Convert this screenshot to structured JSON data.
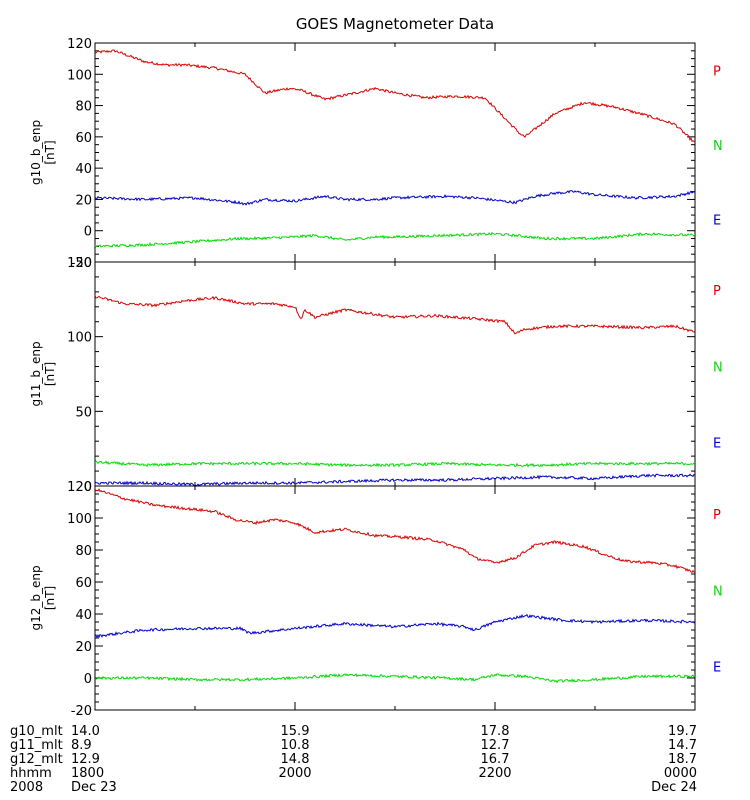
{
  "title": "GOES Magnetometer Data",
  "colors": {
    "P": "#dd0000",
    "N": "#00dd00",
    "E": "#0000cc"
  },
  "legend_labels": [
    "P",
    "N",
    "E"
  ],
  "chart_data": [
    {
      "type": "line",
      "ylabel": "g10_b_enp",
      "yunit": "[nT]",
      "ylim": [
        -20,
        120
      ],
      "yticks": [
        -20,
        0,
        20,
        40,
        60,
        80,
        100,
        120
      ],
      "xlim": [
        0,
        6
      ],
      "x_hours_note": "hours from 1800 UT Dec 23",
      "series": [
        {
          "name": "P",
          "color": "P",
          "x": [
            0,
            0.2,
            0.5,
            0.7,
            0.9,
            1.2,
            1.5,
            1.7,
            1.85,
            1.95,
            2.05,
            2.3,
            2.6,
            2.8,
            3.0,
            3.3,
            3.6,
            3.9,
            4.05,
            4.25,
            4.3,
            4.6,
            4.9,
            5.2,
            5.5,
            5.8,
            6.0
          ],
          "y": [
            114,
            115,
            108,
            106,
            106,
            104,
            100,
            88,
            90,
            91,
            90,
            84,
            88,
            91,
            88,
            85,
            86,
            85,
            75,
            62,
            60,
            75,
            82,
            79,
            74,
            68,
            56
          ]
        },
        {
          "name": "E",
          "color": "E",
          "x": [
            0,
            0.5,
            1.0,
            1.45,
            1.5,
            1.7,
            2.0,
            2.3,
            2.5,
            2.8,
            3.0,
            3.5,
            3.8,
            4.2,
            4.4,
            4.6,
            4.8,
            5.0,
            5.4,
            5.8,
            6.0
          ],
          "y": [
            21,
            20,
            21,
            18,
            17,
            20,
            19,
            22,
            20,
            20,
            21,
            22,
            21,
            18,
            22,
            24,
            25,
            23,
            21,
            22,
            25
          ]
        },
        {
          "name": "N",
          "color": "N",
          "x": [
            0,
            0.5,
            1.0,
            1.45,
            1.6,
            2.0,
            2.2,
            2.5,
            2.8,
            3.0,
            3.5,
            4.0,
            4.2,
            4.5,
            5.0,
            5.5,
            6.0
          ],
          "y": [
            -10,
            -9,
            -7,
            -5,
            -5,
            -4,
            -3,
            -6,
            -4,
            -4,
            -3,
            -2,
            -3,
            -5,
            -5,
            -2,
            -3
          ]
        }
      ]
    },
    {
      "type": "line",
      "ylabel": "g11_b_enp",
      "yunit": "[nT]",
      "ylim": [
        0,
        150
      ],
      "yticks": [
        0,
        50,
        100,
        150
      ],
      "xlim": [
        0,
        6
      ],
      "series": [
        {
          "name": "P",
          "color": "P",
          "x": [
            0,
            0.3,
            0.6,
            0.9,
            1.2,
            1.5,
            1.8,
            2.0,
            2.06,
            2.1,
            2.2,
            2.5,
            2.8,
            3.0,
            3.4,
            3.8,
            4.1,
            4.2,
            4.3,
            4.6,
            5.0,
            5.5,
            5.8,
            6.0
          ],
          "y": [
            127,
            122,
            121,
            124,
            126,
            122,
            122,
            120,
            112,
            118,
            113,
            118,
            115,
            113,
            114,
            112,
            110,
            102,
            105,
            107,
            107,
            106,
            107,
            103
          ]
        },
        {
          "name": "N",
          "color": "N",
          "x": [
            0,
            0.5,
            1.0,
            1.5,
            2.0,
            2.5,
            3.0,
            3.5,
            4.0,
            4.5,
            5.0,
            5.5,
            6.0
          ],
          "y": [
            16,
            14,
            15,
            15,
            15,
            14,
            14,
            15,
            14,
            14,
            15,
            15,
            15
          ]
        },
        {
          "name": "E",
          "color": "E",
          "x": [
            0,
            0.5,
            1.0,
            1.5,
            2.0,
            2.5,
            3.0,
            3.5,
            4.0,
            4.5,
            5.0,
            5.5,
            6.0
          ],
          "y": [
            2,
            2,
            1,
            2,
            2,
            3,
            4,
            4,
            5,
            6,
            5,
            7,
            7
          ]
        }
      ]
    },
    {
      "type": "line",
      "ylabel": "g12_b_enp",
      "yunit": "[nT]",
      "ylim": [
        -20,
        120
      ],
      "yticks": [
        -20,
        0,
        20,
        40,
        60,
        80,
        100,
        120
      ],
      "xlim": [
        0,
        6
      ],
      "series": [
        {
          "name": "P",
          "color": "P",
          "x": [
            0,
            0.3,
            0.6,
            0.9,
            1.2,
            1.4,
            1.6,
            1.8,
            2.0,
            2.2,
            2.5,
            2.8,
            3.1,
            3.4,
            3.7,
            3.8,
            4.0,
            4.2,
            4.4,
            4.6,
            4.9,
            5.1,
            5.3,
            5.6,
            5.8,
            6.0
          ],
          "y": [
            118,
            112,
            108,
            106,
            104,
            99,
            97,
            99,
            97,
            91,
            93,
            89,
            88,
            86,
            80,
            75,
            72,
            75,
            83,
            85,
            82,
            77,
            73,
            72,
            70,
            66
          ]
        },
        {
          "name": "E",
          "color": "E",
          "x": [
            0,
            0.5,
            1.0,
            1.45,
            1.55,
            2.0,
            2.5,
            3.0,
            3.4,
            3.7,
            3.8,
            4.0,
            4.3,
            4.7,
            5.0,
            5.5,
            6.0
          ],
          "y": [
            26,
            30,
            31,
            31,
            28,
            31,
            34,
            32,
            34,
            32,
            30,
            35,
            39,
            36,
            35,
            36,
            35
          ]
        },
        {
          "name": "N",
          "color": "N",
          "x": [
            0,
            0.5,
            1.0,
            1.5,
            2.0,
            2.5,
            3.0,
            3.5,
            3.8,
            4.0,
            4.3,
            4.6,
            5.0,
            5.5,
            6.0
          ],
          "y": [
            0,
            0,
            -1,
            -1,
            0,
            2,
            1,
            0,
            -1,
            2,
            1,
            -2,
            -1,
            1,
            1
          ]
        }
      ]
    }
  ],
  "x_axis": {
    "rows": [
      {
        "label": "g10_mlt",
        "values": [
          "14.0",
          "15.9",
          "17.8",
          "19.7"
        ]
      },
      {
        "label": "g11_mlt",
        "values": [
          "8.9",
          "10.8",
          "12.7",
          "14.7"
        ]
      },
      {
        "label": "g12_mlt",
        "values": [
          "12.9",
          "14.8",
          "16.7",
          "18.7"
        ]
      },
      {
        "label": "hhmm",
        "values": [
          "1800",
          "2000",
          "2200",
          "0000"
        ]
      },
      {
        "label": "2008",
        "values": [
          "Dec 23",
          "",
          "",
          "Dec 24"
        ]
      }
    ],
    "major_tick_hours": [
      0,
      2,
      4,
      6
    ],
    "minor_tick_hours": [
      1,
      3,
      5
    ]
  }
}
